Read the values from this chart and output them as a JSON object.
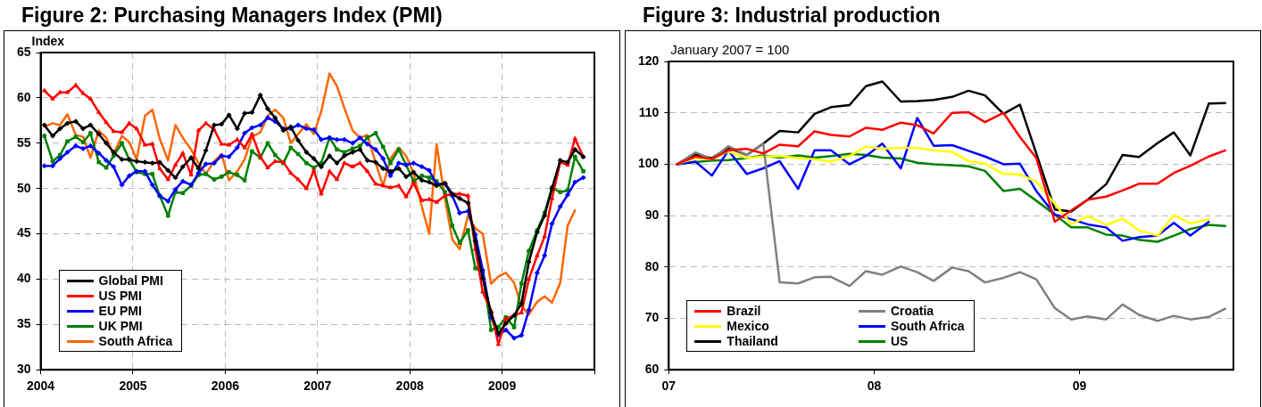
{
  "chart_data": [
    {
      "type": "line",
      "title": "Figure 2: Purchasing Managers Index (PMI)",
      "ylabel": "Index",
      "x": [
        2004.04,
        2004.13,
        2004.21,
        2004.29,
        2004.38,
        2004.46,
        2004.54,
        2004.63,
        2004.71,
        2004.79,
        2004.88,
        2004.96,
        2005.04,
        2005.13,
        2005.21,
        2005.29,
        2005.38,
        2005.46,
        2005.54,
        2005.63,
        2005.71,
        2005.79,
        2005.88,
        2005.96,
        2006.04,
        2006.13,
        2006.21,
        2006.29,
        2006.38,
        2006.46,
        2006.54,
        2006.63,
        2006.71,
        2006.79,
        2006.88,
        2006.96,
        2007.04,
        2007.13,
        2007.21,
        2007.29,
        2007.38,
        2007.46,
        2007.54,
        2007.63,
        2007.71,
        2007.79,
        2007.88,
        2007.96,
        2008.04,
        2008.13,
        2008.21,
        2008.29,
        2008.38,
        2008.46,
        2008.54,
        2008.63,
        2008.71,
        2008.79,
        2008.88,
        2008.96,
        2009.04,
        2009.13,
        2009.21,
        2009.29,
        2009.38,
        2009.46,
        2009.54,
        2009.63,
        2009.71,
        2009.79,
        2009.88
      ],
      "series": [
        {
          "name": "Global PMI",
          "color": "#000000",
          "marker": "diamond",
          "values": [
            57.0,
            55.8,
            56.6,
            57.2,
            57.4,
            56.6,
            57.0,
            56.0,
            55.0,
            54.0,
            53.2,
            53.2,
            53.0,
            52.9,
            52.8,
            52.9,
            52.0,
            51.2,
            52.4,
            53.4,
            52.2,
            54.2,
            57.0,
            57.1,
            58.1,
            56.6,
            58.3,
            58.4,
            60.3,
            58.8,
            57.8,
            56.4,
            56.8,
            55.3,
            54.0,
            53.3,
            52.4,
            53.6,
            52.8,
            53.6,
            54.0,
            54.3,
            53.1,
            52.9,
            52.2,
            51.9,
            52.2,
            51.3,
            51.8,
            50.9,
            50.7,
            50.3,
            50.6,
            49.4,
            48.9,
            48.4,
            44.2,
            40.1,
            36.3,
            34.0,
            35.1,
            36.0,
            37.3,
            41.9,
            45.2,
            47.0,
            50.0,
            53.1,
            52.9,
            54.3,
            53.5
          ]
        },
        {
          "name": "US PMI",
          "color": "#ff0000",
          "marker": "triangle",
          "values": [
            60.8,
            59.9,
            60.6,
            60.6,
            61.4,
            60.5,
            59.9,
            58.4,
            57.3,
            56.3,
            56.2,
            57.2,
            56.6,
            54.8,
            54.9,
            52.2,
            51.0,
            52.6,
            53.9,
            51.5,
            56.4,
            57.2,
            56.5,
            54.9,
            54.8,
            55.4,
            54.5,
            56.0,
            53.5,
            52.3,
            53.0,
            52.9,
            51.7,
            51.0,
            50.0,
            52.0,
            49.4,
            51.9,
            51.0,
            52.8,
            52.4,
            52.8,
            51.9,
            50.5,
            50.3,
            50.1,
            50.3,
            49.1,
            50.6,
            48.7,
            48.8,
            48.5,
            49.2,
            49.4,
            49.4,
            49.2,
            43.3,
            38.6,
            36.5,
            32.8,
            35.6,
            36.0,
            36.3,
            40.0,
            42.6,
            44.7,
            48.9,
            52.9,
            52.6,
            55.5,
            53.5
          ]
        },
        {
          "name": "EU PMI",
          "color": "#0000ff",
          "marker": "diamond",
          "values": [
            52.5,
            52.5,
            53.3,
            54.0,
            54.7,
            54.4,
            54.7,
            53.9,
            53.1,
            52.4,
            50.4,
            51.4,
            51.9,
            51.9,
            50.4,
            49.2,
            48.6,
            49.9,
            50.8,
            50.4,
            51.7,
            52.7,
            52.8,
            53.6,
            53.5,
            54.5,
            56.1,
            56.7,
            57.0,
            57.8,
            57.4,
            56.6,
            56.6,
            57.0,
            56.6,
            56.5,
            55.4,
            55.6,
            55.4,
            55.4,
            55.0,
            55.6,
            54.9,
            54.3,
            53.3,
            51.4,
            52.8,
            52.6,
            52.8,
            52.4,
            52.0,
            50.5,
            50.5,
            49.2,
            47.3,
            47.5,
            44.9,
            41.0,
            35.8,
            33.8,
            34.4,
            33.5,
            33.8,
            36.6,
            40.7,
            42.6,
            46.1,
            48.0,
            49.3,
            50.7,
            51.2
          ]
        },
        {
          "name": "UK PMI",
          "color": "#008000",
          "marker": "square",
          "values": [
            55.8,
            53.0,
            53.7,
            55.2,
            55.7,
            55.1,
            56.1,
            52.9,
            52.3,
            53.6,
            55.0,
            53.2,
            51.8,
            51.6,
            51.6,
            49.2,
            47.0,
            49.6,
            49.5,
            50.3,
            51.5,
            51.6,
            51.0,
            51.3,
            51.8,
            51.5,
            50.9,
            54.1,
            53.4,
            55.0,
            53.7,
            52.8,
            54.5,
            53.8,
            52.8,
            52.3,
            52.8,
            55.6,
            54.3,
            54.0,
            54.4,
            54.7,
            55.6,
            56.1,
            54.6,
            52.8,
            54.3,
            52.6,
            50.8,
            51.4,
            51.2,
            50.8,
            49.6,
            45.9,
            44.0,
            45.4,
            41.2,
            40.7,
            34.4,
            34.7,
            35.8,
            34.7,
            39.5,
            43.1,
            45.4,
            47.3,
            50.1,
            49.6,
            49.8,
            53.5,
            51.9
          ]
        },
        {
          "name": "South Africa",
          "color": "#ff6600",
          "marker": "none",
          "values": [
            56.8,
            57.2,
            57.0,
            58.2,
            55.9,
            55.7,
            53.4,
            56.4,
            55.6,
            53.8,
            55.8,
            55.1,
            53.2,
            58.0,
            58.7,
            55.5,
            53.1,
            57.0,
            55.6,
            54.3,
            52.8,
            51.6,
            53.0,
            53.8,
            50.9,
            51.9,
            53.2,
            55.7,
            56.2,
            58.0,
            58.7,
            57.8,
            55.0,
            56.0,
            57.1,
            56.0,
            58.5,
            62.7,
            61.3,
            58.9,
            56.4,
            55.6,
            55.9,
            52.8,
            50.3,
            53.3,
            54.5,
            53.6,
            51.7,
            48.0,
            45.0,
            54.9,
            48.9,
            44.4,
            43.3,
            47.0,
            45.6,
            45.0,
            39.5,
            40.3,
            40.7,
            39.6,
            37.0,
            36.1,
            37.5,
            38.1,
            37.4,
            39.6,
            45.9,
            47.6,
            null
          ]
        }
      ],
      "xlim": [
        2004,
        2010
      ],
      "xticks": [
        2004,
        2005,
        2006,
        2007,
        2008,
        2009,
        {
          "value": 2010,
          "label": null
        }
      ],
      "ylim": [
        30,
        65
      ],
      "yticks": [
        30,
        35,
        40,
        45,
        50,
        55,
        60,
        65
      ],
      "grid": true,
      "legend": "bottom left"
    },
    {
      "type": "line",
      "title": "Figure 3: Industrial production",
      "ylabel": "January 2007 = 100",
      "x": [
        2007.04,
        2007.13,
        2007.21,
        2007.29,
        2007.38,
        2007.46,
        2007.54,
        2007.63,
        2007.71,
        2007.79,
        2007.88,
        2007.96,
        2008.04,
        2008.13,
        2008.21,
        2008.29,
        2008.38,
        2008.46,
        2008.54,
        2008.63,
        2008.71,
        2008.79,
        2008.88,
        2008.96,
        2009.04,
        2009.13,
        2009.21,
        2009.29,
        2009.38,
        2009.46,
        2009.54,
        2009.63,
        2009.71
      ],
      "series": [
        {
          "name": "Brazil",
          "color": "#ff0000",
          "values": [
            100,
            101.5,
            101,
            102.7,
            103,
            102.1,
            103.8,
            103.5,
            106.4,
            105.7,
            105.4,
            107.1,
            106.7,
            108.1,
            107.6,
            106,
            110,
            110.1,
            108.2,
            110,
            105.3,
            101.2,
            88.8,
            91,
            93.1,
            93.7,
            94.9,
            96.2,
            96.2,
            98.3,
            99.7,
            101.5,
            102.7
          ]
        },
        {
          "name": "Croatia",
          "color": "#808080",
          "values": [
            100,
            102.3,
            101,
            103.5,
            101.8,
            104,
            77,
            76.8,
            78,
            78.1,
            76.3,
            79.2,
            78.5,
            80.1,
            79,
            77.3,
            79.9,
            79.2,
            77,
            77.9,
            79,
            77.6,
            72,
            69.8,
            70.4,
            69.8,
            72.7,
            70.7,
            69.5,
            70.5,
            69.8,
            70.3,
            71.9
          ]
        },
        {
          "name": "Mexico",
          "color": "#ffff00",
          "values": [
            100,
            101.2,
            101,
            102.5,
            101.2,
            101.5,
            101.6,
            101.2,
            101,
            100.5,
            101.6,
            103.4,
            103,
            103.2,
            103.2,
            102.7,
            102.4,
            100.6,
            100.1,
            98.1,
            98,
            96.6,
            92.3,
            88.3,
            89.9,
            88.2,
            89.4,
            87.1,
            86.1,
            90.1,
            88.5,
            89.3,
            null
          ]
        },
        {
          "name": "South Africa",
          "color": "#0000ff",
          "values": [
            100,
            100.5,
            97.8,
            102.7,
            98.1,
            99.2,
            100.6,
            95.2,
            102.7,
            102.7,
            100,
            101.6,
            104,
            99.2,
            109,
            103.6,
            103.7,
            102.6,
            101.5,
            100,
            100.1,
            94.8,
            90.2,
            89.3,
            88.3,
            87.7,
            85.1,
            85.8,
            86.1,
            88.6,
            86.1,
            88.8,
            null
          ]
        },
        {
          "name": "Thailand",
          "color": "#000000",
          "values": [
            100,
            101.9,
            101.2,
            103.2,
            101.8,
            104,
            106.5,
            106.2,
            109.8,
            111.1,
            111.5,
            115.2,
            116.1,
            112.2,
            112.3,
            112.5,
            113.1,
            114.3,
            113.4,
            109.8,
            111.6,
            102.1,
            91.2,
            90.8,
            93.1,
            96.1,
            101.8,
            101.4,
            104.1,
            106.2,
            101.7,
            111.8,
            111.9
          ]
        },
        {
          "name": "US",
          "color": "#008000",
          "values": [
            100,
            100.4,
            100.7,
            100.8,
            101.2,
            101.7,
            101.3,
            101.7,
            101.3,
            101.6,
            102,
            101.8,
            101.3,
            101.1,
            100.3,
            100,
            99.8,
            99.6,
            98.7,
            94.8,
            95.2,
            92.9,
            90.2,
            87.7,
            87.7,
            86.3,
            86.1,
            85.3,
            84.9,
            86.1,
            87.4,
            88.2,
            88
          ]
        }
      ],
      "xlim": [
        2007,
        2009.75
      ],
      "xticks": [
        {
          "value": 2007,
          "label": "07"
        },
        {
          "value": 2008,
          "label": "08"
        },
        {
          "value": 2009,
          "label": "09"
        }
      ],
      "ylim": [
        60,
        120
      ],
      "yticks": [
        60,
        70,
        80,
        90,
        100,
        110,
        120
      ],
      "grid": "y",
      "legend": "bottom left"
    }
  ]
}
